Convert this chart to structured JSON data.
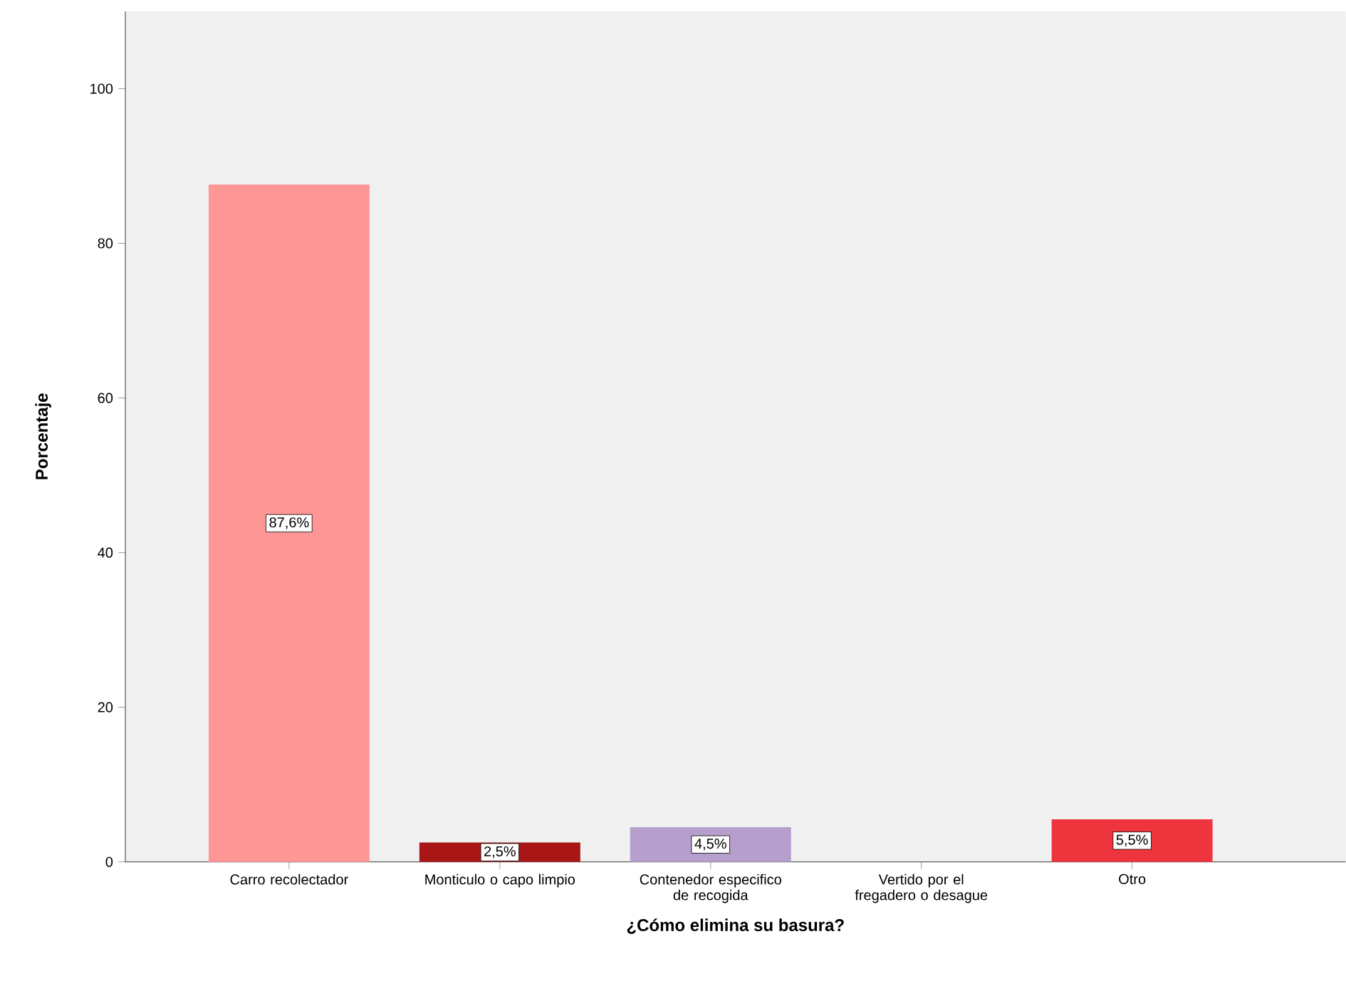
{
  "chart_data": {
    "type": "bar",
    "xlabel": "¿Cómo elimina su basura?",
    "ylabel": "Porcentaje",
    "categories": [
      "Carro recolectador",
      "Monticulo o capo limpio",
      "Contenedor especifico de recogida",
      "Vertido por el fregadero o desague",
      "Otro"
    ],
    "values": [
      87.6,
      2.5,
      4.5,
      0,
      5.5
    ],
    "value_labels": [
      "87,6%",
      "2,5%",
      "4,5%",
      null,
      "5,5%"
    ],
    "colors": [
      "#ff9696",
      "#a81616",
      "#b79fcd",
      "#a81616",
      "#ee343c"
    ],
    "ylim": [
      0,
      110
    ],
    "yticks": [
      0,
      20,
      40,
      60,
      80,
      100
    ],
    "grid": false
  }
}
